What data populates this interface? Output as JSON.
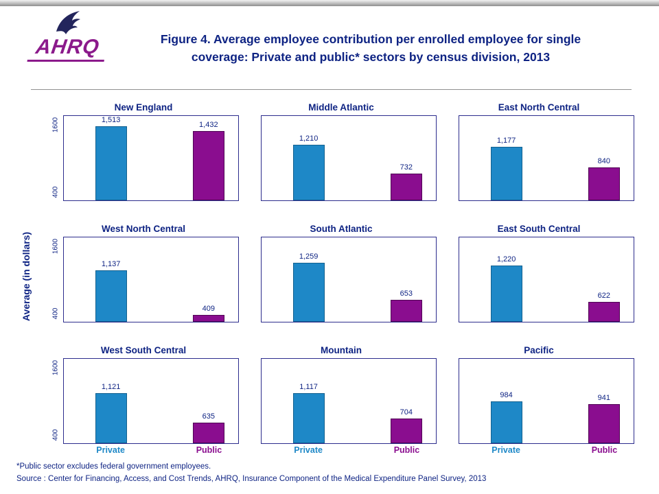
{
  "header": {
    "logo_text": "AHRQ",
    "title_line1": "Figure 4. Average employee contribution per enrolled employee for single",
    "title_line2": "coverage: Private and public* sectors by census division, 2013"
  },
  "footer": {
    "note": "*Public sector excludes federal government employees.",
    "source": "Source : Center for Financing, Access, and Cost Trends, AHRQ, Insurance Component of the Medical Expenditure Panel Survey, 2013"
  },
  "colors": {
    "navy_text": "#0E2383",
    "plot_border": "#2B2B8C",
    "private_bar": "#1E88C7",
    "private_bar_border": "#12608F",
    "public_bar": "#8A0D8F",
    "public_bar_border": "#4F0553",
    "private_label": "#1E88C7",
    "public_label": "#8A0D8F",
    "logo_purple": "#8B1A8B"
  },
  "chart_data": {
    "type": "bar",
    "title": "Figure 4. Average employee contribution per enrolled employee for single coverage: Private and public* sectors by census division, 2013",
    "ylabel": "Average (in dollars)",
    "ylim": [
      300,
      1700
    ],
    "yticks": [
      "400",
      "1600"
    ],
    "grid": false,
    "legend_position": "bottom-axis",
    "series_labels": [
      "Private",
      "Public"
    ],
    "panels": [
      {
        "title": "New England",
        "private": 1513,
        "public": 1432,
        "private_label": "1,513",
        "public_label": "1,432"
      },
      {
        "title": "Middle Atlantic",
        "private": 1210,
        "public": 732,
        "private_label": "1,210",
        "public_label": "732"
      },
      {
        "title": "East North Central",
        "private": 1177,
        "public": 840,
        "private_label": "1,177",
        "public_label": "840"
      },
      {
        "title": "West North Central",
        "private": 1137,
        "public": 409,
        "private_label": "1,137",
        "public_label": "409"
      },
      {
        "title": "South Atlantic",
        "private": 1259,
        "public": 653,
        "private_label": "1,259",
        "public_label": "653"
      },
      {
        "title": "East South Central",
        "private": 1220,
        "public": 622,
        "private_label": "1,220",
        "public_label": "622"
      },
      {
        "title": "West South Central",
        "private": 1121,
        "public": 635,
        "private_label": "1,121",
        "public_label": "635"
      },
      {
        "title": "Mountain",
        "private": 1117,
        "public": 704,
        "private_label": "1,117",
        "public_label": "704"
      },
      {
        "title": "Pacific",
        "private": 984,
        "public": 941,
        "private_label": "984",
        "public_label": "941"
      }
    ]
  }
}
